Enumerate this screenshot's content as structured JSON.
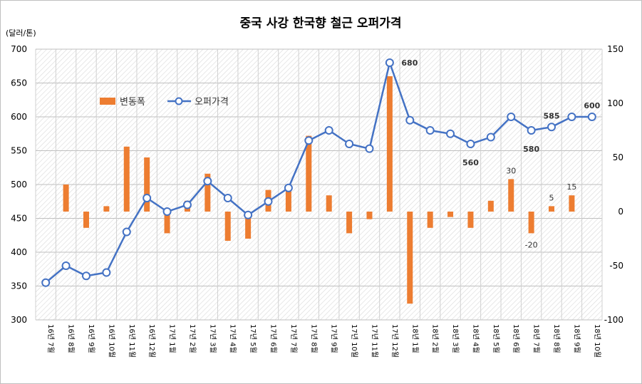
{
  "chart_data": {
    "type": "bar+line",
    "title": "중국 사강 한국향 철근 오퍼가격",
    "y_left_unit": "(달러/톤)",
    "y_left_lim": [
      300,
      700
    ],
    "y_left_ticks": [
      300,
      350,
      400,
      450,
      500,
      550,
      600,
      650,
      700
    ],
    "y_right_lim": [
      -100,
      150
    ],
    "y_right_ticks": [
      -100,
      -50,
      0,
      50,
      100,
      150
    ],
    "grid": true,
    "legend_position": "top-left",
    "categories": [
      "16년 7월",
      "16년 8월",
      "16년 9월",
      "16년 10월",
      "16년 11월",
      "16년 12월",
      "17년 1월",
      "17년 2월",
      "17년 3월",
      "17년 4월",
      "17년 5월",
      "17년 6월",
      "17년 7월",
      "17년 8월",
      "17년 9월",
      "17년 10월",
      "17년 11월",
      "17년 12월",
      "18년 1월",
      "18년 2월",
      "18년 3월",
      "18년 4월",
      "18년 5월",
      "18년 6월",
      "18년 7월",
      "18년 8월",
      "18년 9월",
      "18년 10월"
    ],
    "series": [
      {
        "name": "변동폭",
        "type": "bar",
        "axis": "right",
        "color": "#ED7D31",
        "values": [
          null,
          25,
          -15,
          5,
          60,
          50,
          -20,
          10,
          35,
          -27,
          -25,
          20,
          20,
          70,
          15,
          -20,
          -7,
          125,
          -85,
          -15,
          -5,
          -15,
          10,
          30,
          -20,
          5,
          15,
          null
        ]
      },
      {
        "name": "오퍼가격",
        "type": "line",
        "axis": "left",
        "color": "#4472C4",
        "values": [
          355,
          380,
          365,
          370,
          430,
          480,
          460,
          470,
          505,
          480,
          455,
          475,
          495,
          565,
          580,
          560,
          553,
          680,
          595,
          580,
          575,
          560,
          570,
          600,
          580,
          585,
          600,
          600
        ]
      }
    ],
    "annotations": [
      {
        "text": "680",
        "category": "17년 12월",
        "series": "오퍼가격"
      },
      {
        "text": "560",
        "category": "18년 4월",
        "series": "오퍼가격"
      },
      {
        "text": "580",
        "category": "18년 7월",
        "series": "오퍼가격"
      },
      {
        "text": "585",
        "category": "18년 8월",
        "series": "오퍼가격"
      },
      {
        "text": "600",
        "category": "18년 10월",
        "series": "오퍼가격"
      },
      {
        "text": "30",
        "category": "18년 6월",
        "series": "변동폭"
      },
      {
        "text": "-20",
        "category": "18년 7월",
        "series": "변동폭"
      },
      {
        "text": "5",
        "category": "18년 8월",
        "series": "변동폭"
      },
      {
        "text": "15",
        "category": "18년 9월",
        "series": "변동폭"
      }
    ]
  }
}
